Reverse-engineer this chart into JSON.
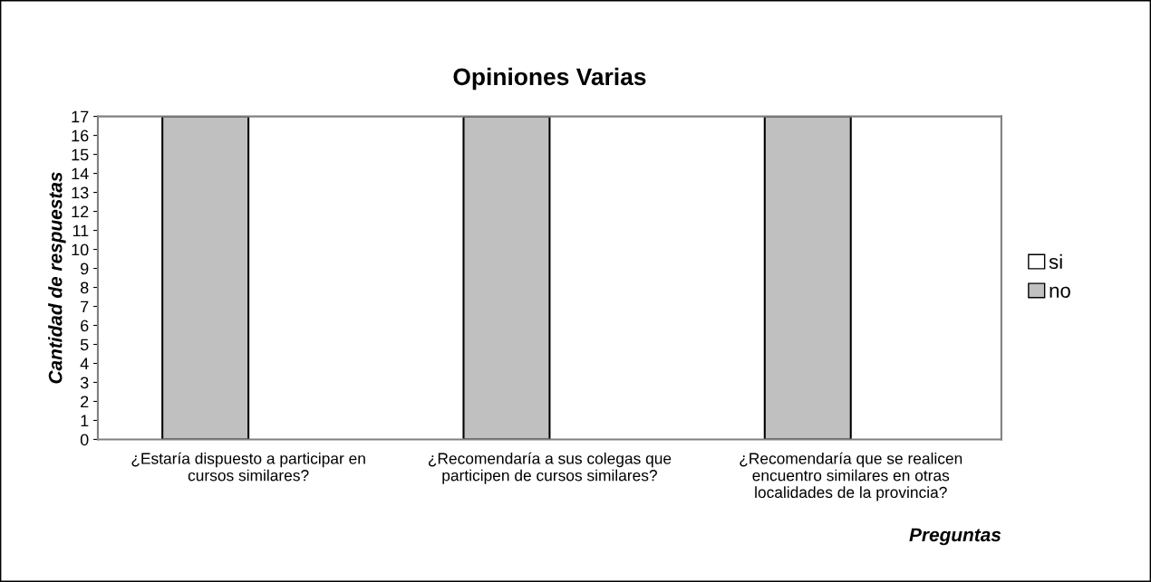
{
  "chart_data": {
    "type": "bar",
    "title": "Opiniones Varias",
    "xlabel": "Preguntas",
    "ylabel": "Cantidad de respuestas",
    "categories": [
      "¿Estaría dispuesto a participar en cursos similares?",
      "¿Recomendaría a sus colegas que participen de cursos similares?",
      "¿Recomendaría que se realicen encuentro similares en otras localidades de la provincia?"
    ],
    "series": [
      {
        "name": "no",
        "color": "#c0c0c0",
        "values": [
          17,
          17,
          17
        ]
      },
      {
        "name": "si",
        "color": "#ffffff",
        "values": [
          0,
          0,
          0
        ]
      }
    ],
    "ylim": [
      0,
      17
    ],
    "yticks": [
      0,
      1,
      2,
      3,
      4,
      5,
      6,
      7,
      8,
      9,
      10,
      11,
      12,
      13,
      14,
      15,
      16,
      17
    ],
    "grid": false,
    "legend": "right"
  }
}
